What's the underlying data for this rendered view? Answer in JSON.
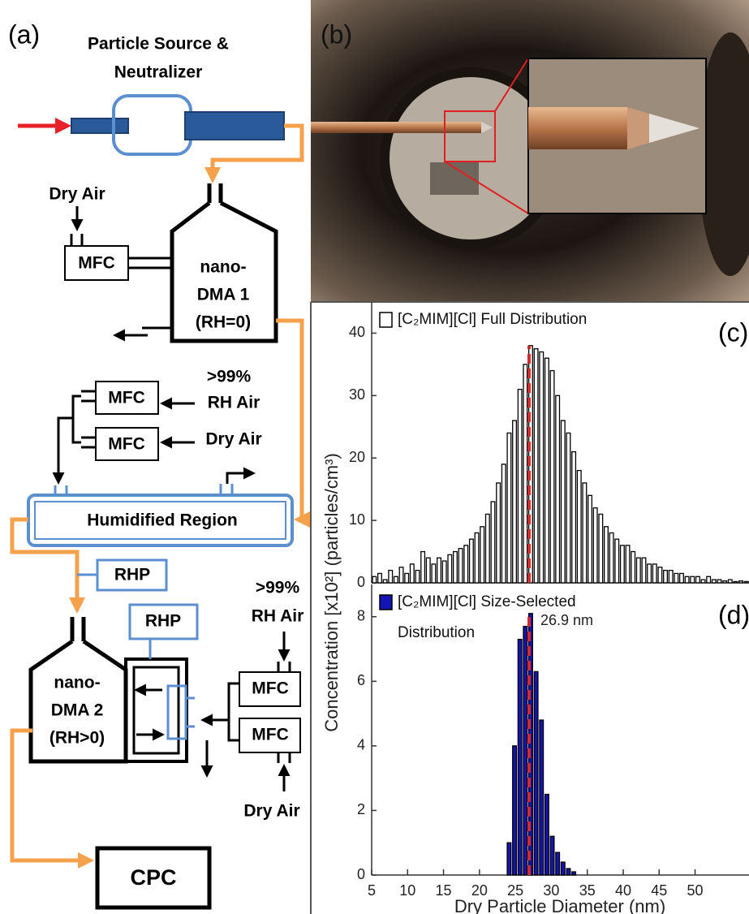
{
  "panels": {
    "a": "(a)",
    "b": "(b)",
    "c": "(c)",
    "d": "(d)"
  },
  "diagram": {
    "source_label": [
      "Particle Source &",
      "Neutralizer"
    ],
    "dry_air_1": "Dry Air",
    "mfc_1": "MFC",
    "dma_1": [
      "nano-",
      "DMA 1",
      "(RH=0)"
    ],
    "rh_air_1": [
      ">99%",
      "RH Air"
    ],
    "mfc_2": "MFC",
    "mfc_3": "MFC",
    "dry_air_2": "Dry Air",
    "humidified": "Humidified Region",
    "rhp_1": "RHP",
    "rhp_2": "RHP",
    "dma_2": [
      "nano-",
      "DMA 2",
      "(RH>0)"
    ],
    "rh_air_2": [
      ">99%",
      "RH Air"
    ],
    "mfc_4": "MFC",
    "mfc_5": "MFC",
    "dry_air_3": "Dry Air",
    "cpc": "CPC"
  },
  "chart_data": [
    {
      "type": "histogram",
      "bins": [
        5,
        5.75,
        6.5,
        7.25,
        8,
        8.75,
        9.5,
        10.25,
        11,
        11.75,
        12.5,
        13.25,
        14,
        14.75,
        15.5,
        16.25,
        17,
        17.75,
        18.5,
        19.25,
        20,
        20.75,
        21.5,
        22.25,
        23,
        23.75,
        24.5,
        25.25,
        26,
        26.75,
        27.5,
        28.25,
        29,
        29.75,
        30.5,
        31.25,
        32,
        32.75,
        33.5,
        34.25,
        35,
        35.75,
        36.5,
        37.25,
        38,
        38.75,
        39.5,
        40.25,
        41,
        41.75,
        42.5,
        43.25,
        44,
        44.75,
        45.5,
        46.25,
        47,
        47.75,
        48.5,
        49.25,
        50,
        50.75,
        51.5,
        52.25,
        53,
        53.75,
        54.5,
        55.25,
        56,
        56.75,
        57.5
      ],
      "series": [
        {
          "name": "[C₂MIM][Cl] Full Distribution",
          "color": "#ffffff",
          "values": [
            1,
            1.5,
            0.5,
            2,
            1,
            2.5,
            1.5,
            3,
            2,
            5,
            4,
            3,
            4,
            3.5,
            4.5,
            5,
            5.5,
            6,
            7,
            8,
            9,
            11,
            13,
            16,
            19,
            24,
            26,
            31,
            35,
            38,
            37.5,
            37,
            36,
            34,
            30,
            26,
            24,
            21,
            18,
            16,
            14,
            12,
            11,
            9,
            8,
            7,
            6,
            6,
            5,
            4,
            4,
            3,
            3,
            2.5,
            2,
            2,
            1.5,
            1.5,
            1,
            1,
            1,
            0.5,
            1,
            0.5,
            0.5,
            0.3,
            0.5,
            0.2,
            0.3,
            0.2
          ]
        }
      ],
      "xlim": [
        5,
        57.5
      ],
      "ylim": [
        0,
        45
      ],
      "yticks": [
        0,
        10,
        20,
        30,
        40
      ],
      "vline": 26.9,
      "vline_color": "#d42a2a",
      "ylabel": "Concentration [x10²] (particles/cm³)"
    },
    {
      "type": "histogram",
      "bins": [
        23.75,
        24.5,
        25.25,
        26,
        26.75,
        27.5,
        28.25,
        29,
        29.75,
        30.5,
        31.25,
        32,
        32.75,
        33.5
      ],
      "series": [
        {
          "name": "[C₂MIM][Cl] Size-Selected Distribution",
          "color": "#1414b4",
          "values": [
            1,
            4,
            7.3,
            7.7,
            8.1,
            6.3,
            4.8,
            2.5,
            1.2,
            0.7,
            0.4,
            0.2,
            0.1
          ]
        }
      ],
      "xlim": [
        5,
        57.5
      ],
      "xticks": [
        5,
        10,
        15,
        20,
        25,
        30,
        35,
        40,
        45,
        50
      ],
      "ylim": [
        0,
        9
      ],
      "yticks": [
        0,
        2,
        4,
        6,
        8
      ],
      "vline": 26.9,
      "vline_color": "#d42a2a",
      "annotation": "26.9 nm",
      "xlabel": "Dry Particle Diameter (nm)"
    }
  ]
}
